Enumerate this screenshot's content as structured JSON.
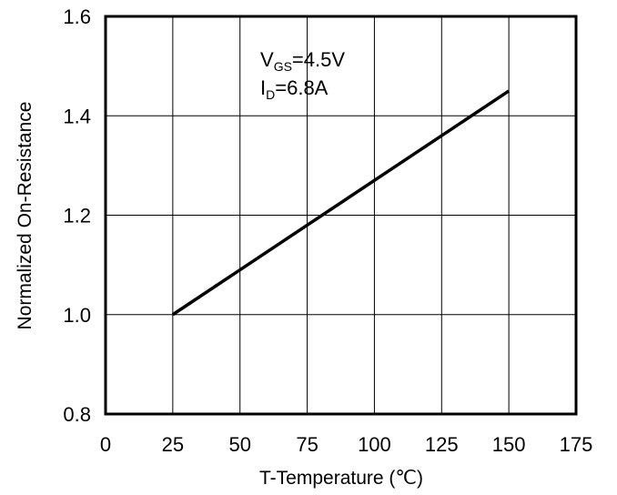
{
  "chart_data": {
    "type": "line",
    "title": "",
    "xlabel": "T-Temperature (℃)",
    "ylabel": "Normalized On-Resistance",
    "xlim": [
      0,
      175
    ],
    "ylim": [
      0.8,
      1.6
    ],
    "x_ticks": [
      0,
      25,
      50,
      75,
      100,
      125,
      150,
      175
    ],
    "y_ticks": [
      0.8,
      1.0,
      1.2,
      1.4,
      1.6
    ],
    "x_tick_labels": [
      "0",
      "25",
      "50",
      "75",
      "100",
      "125",
      "150",
      "175"
    ],
    "y_tick_labels": [
      "0.8",
      "1.0",
      "1.2",
      "1.4",
      "1.6"
    ],
    "grid": true,
    "series": [
      {
        "x": [
          25,
          150
        ],
        "y": [
          1.0,
          1.45
        ],
        "color": "#000000"
      }
    ],
    "annotations": {
      "vgs_main": "V",
      "vgs_sub": "GS",
      "vgs_value": "=4.5V",
      "id_main": "I",
      "id_sub": "D",
      "id_value": "=6.8A"
    }
  }
}
